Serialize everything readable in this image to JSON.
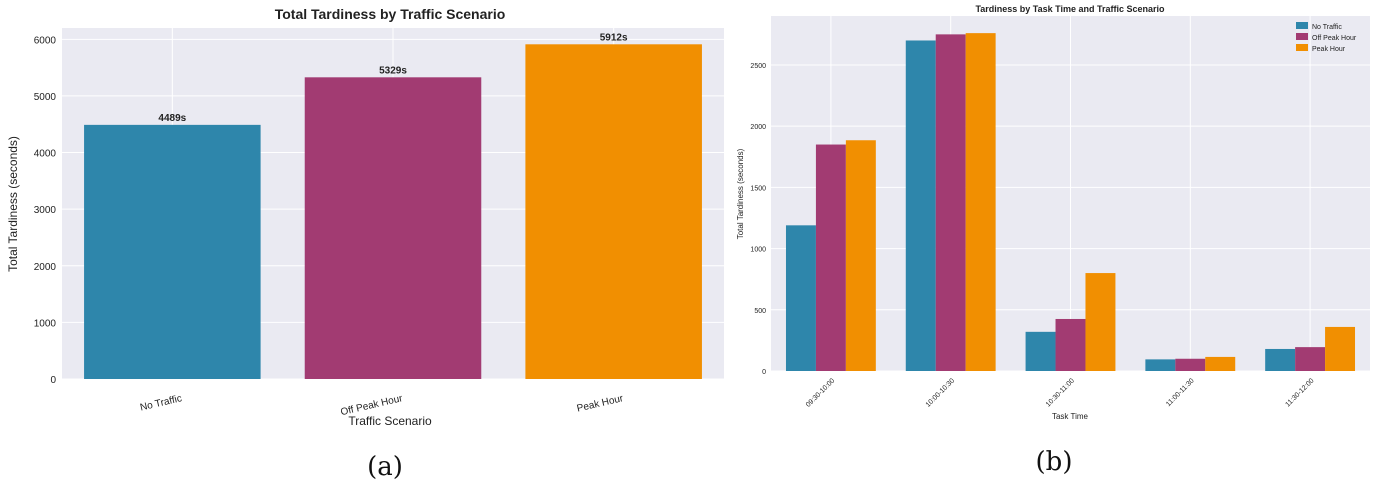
{
  "colors": {
    "no_traffic": "#2E86AB",
    "off_peak_hour": "#A23B72",
    "peak_hour": "#F18F01",
    "plot_bg": "#EAEAF2",
    "grid": "#FFFFFF"
  },
  "chart_data": [
    {
      "type": "bar",
      "caption": "(a)",
      "title": "Total Tardiness by Traffic Scenario",
      "xlabel": "Traffic Scenario",
      "ylabel": "Total Tardiness (seconds)",
      "categories": [
        "No Traffic",
        "Off Peak Hour",
        "Peak Hour"
      ],
      "values": [
        4489,
        5329,
        5912
      ],
      "value_labels": [
        "4489s",
        "5329s",
        "5912s"
      ],
      "ylim": [
        0,
        6200
      ],
      "yticks": [
        0,
        1000,
        2000,
        3000,
        4000,
        5000,
        6000
      ],
      "grid": true
    },
    {
      "type": "bar",
      "caption": "(b)",
      "title": "Tardiness by Task Time and Traffic Scenario",
      "xlabel": "Task Time",
      "ylabel": "Total Tardiness (seconds)",
      "categories": [
        "09:30-10:00",
        "10:00-10:30",
        "10:30-11:00",
        "11:00-11:30",
        "11:30-12:00"
      ],
      "series": [
        {
          "name": "No Traffic",
          "values": [
            1190,
            2700,
            320,
            95,
            180
          ]
        },
        {
          "name": "Off Peak Hour",
          "values": [
            1850,
            2750,
            425,
            100,
            195
          ]
        },
        {
          "name": "Peak Hour",
          "values": [
            1885,
            2760,
            800,
            115,
            360
          ]
        }
      ],
      "ylim": [
        0,
        2900
      ],
      "yticks": [
        0,
        500,
        1000,
        1500,
        2000,
        2500
      ],
      "legend": "top-right",
      "grid": true
    }
  ]
}
